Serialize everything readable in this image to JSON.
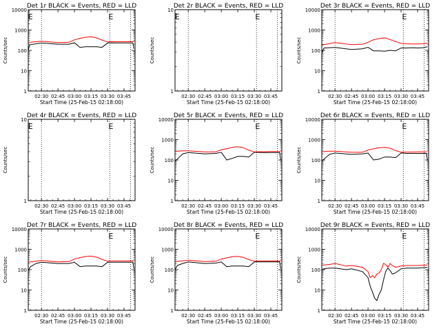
{
  "x_ticks": [
    "02:30",
    "02:45",
    "03:00",
    "03:15",
    "03:30",
    "03:45"
  ],
  "y_ticks_log": [
    "1",
    "10",
    "100",
    "1000",
    "10000"
  ],
  "y_ticks_empty": [
    "1",
    "10"
  ],
  "ylabel": "Counts/sec",
  "xlabel": "Start Time (25-Feb-15 02:18:00)",
  "marker_letter": "E",
  "colors": {
    "events": "#000000",
    "lld": "#ff0000"
  },
  "chart_data": [
    {
      "type": "line",
      "title": "Det 1r BLACK = Events, RED = LLD",
      "xlabel": "Start Time (25-Feb-15 02:18:00)",
      "ylabel": "Counts/sec",
      "yscale": "log",
      "ylim": [
        1,
        10000
      ],
      "has_data": true,
      "x": [
        "02:18",
        "02:19",
        "02:20",
        "02:30",
        "02:45",
        "02:55",
        "03:00",
        "03:05",
        "03:10",
        "03:15",
        "03:20",
        "03:25",
        "03:30",
        "03:35",
        "03:40",
        "03:45",
        "03:50",
        "03:53",
        "03:54"
      ],
      "series": [
        {
          "name": "Events",
          "color": "#000000",
          "values": [
            95,
            170,
            190,
            230,
            200,
            200,
            235,
            140,
            150,
            150,
            150,
            140,
            230,
            235,
            230,
            230,
            230,
            230,
            120
          ]
        },
        {
          "name": "LLD",
          "color": "#ff0000",
          "values": [
            230,
            240,
            250,
            280,
            240,
            250,
            330,
            390,
            440,
            460,
            410,
            320,
            260,
            270,
            265,
            265,
            265,
            265,
            270
          ]
        }
      ],
      "vlines": [
        "02:30",
        "03:32",
        "03:51"
      ],
      "markers": [
        "02:20",
        "03:33"
      ]
    },
    {
      "type": "line",
      "title": "Det 2r BLACK = Events, RED = LLD",
      "xlabel": "Start Time (25-Feb-15 02:18:00)",
      "ylabel": "Counts/sec",
      "yscale": "log",
      "ylim": [
        1,
        10
      ],
      "has_data": false,
      "x": [],
      "series": [],
      "vlines": [
        "02:30",
        "03:32",
        "03:51"
      ],
      "markers": [
        "02:20",
        "03:33"
      ]
    },
    {
      "type": "line",
      "title": "Det 3r BLACK = Events, RED = LLD",
      "xlabel": "Start Time (25-Feb-15 02:18:00)",
      "ylabel": "Counts/sec",
      "yscale": "log",
      "ylim": [
        1,
        10000
      ],
      "has_data": true,
      "x": [
        "02:18",
        "02:20",
        "02:30",
        "02:45",
        "02:55",
        "03:00",
        "03:05",
        "03:10",
        "03:15",
        "03:20",
        "03:25",
        "03:30",
        "03:35",
        "03:40",
        "03:45",
        "03:50",
        "03:54"
      ],
      "series": [
        {
          "name": "Events",
          "color": "#000000",
          "values": [
            80,
            130,
            140,
            110,
            120,
            140,
            95,
            95,
            90,
            100,
            95,
            130,
            130,
            135,
            130,
            135,
            150
          ]
        },
        {
          "name": "LLD",
          "color": "#ff0000",
          "values": [
            180,
            190,
            240,
            190,
            200,
            250,
            330,
            380,
            410,
            340,
            270,
            220,
            210,
            205,
            205,
            210,
            230
          ]
        }
      ],
      "vlines": [
        "02:30",
        "03:32",
        "03:51"
      ],
      "markers": [
        "03:33"
      ]
    },
    {
      "type": "line",
      "title": "Det 4r BLACK = Events, RED = LLD",
      "xlabel": "Start Time (25-Feb-15 02:18:00)",
      "ylabel": "Counts/sec",
      "yscale": "log",
      "ylim": [
        1,
        10
      ],
      "has_data": false,
      "x": [],
      "series": [],
      "vlines": [
        "02:30",
        "03:32",
        "03:51"
      ],
      "markers": [
        "02:20",
        "03:33"
      ]
    },
    {
      "type": "line",
      "title": "Det 5r BLACK = Events, RED = LLD",
      "xlabel": "Start Time (25-Feb-15 02:18:00)",
      "ylabel": "Counts/sec",
      "yscale": "log",
      "ylim": [
        1,
        10000
      ],
      "has_data": true,
      "x": [
        "02:18",
        "02:20",
        "02:25",
        "02:30",
        "02:45",
        "02:55",
        "03:00",
        "03:05",
        "03:10",
        "03:15",
        "03:20",
        "03:25",
        "03:30",
        "03:35",
        "03:40",
        "03:45",
        "03:50",
        "03:53",
        "03:54"
      ],
      "series": [
        {
          "name": "Events",
          "color": "#000000",
          "values": [
            90,
            110,
            200,
            230,
            200,
            210,
            240,
            100,
            120,
            150,
            150,
            140,
            240,
            230,
            230,
            230,
            230,
            230,
            100
          ]
        },
        {
          "name": "LLD",
          "color": "#ff0000",
          "values": [
            260,
            270,
            280,
            280,
            250,
            250,
            320,
            360,
            420,
            450,
            400,
            300,
            250,
            255,
            255,
            260,
            260,
            260,
            260
          ]
        }
      ],
      "vlines": [
        "02:30",
        "03:32",
        "03:51"
      ],
      "markers": [
        "03:33"
      ]
    },
    {
      "type": "line",
      "title": "Det 6r BLACK = Events, RED = LLD",
      "xlabel": "Start Time (25-Feb-15 02:18:00)",
      "ylabel": "Counts/sec",
      "yscale": "log",
      "ylim": [
        1,
        10000
      ],
      "has_data": true,
      "x": [
        "02:18",
        "02:20",
        "02:25",
        "02:30",
        "02:45",
        "02:55",
        "03:00",
        "03:05",
        "03:10",
        "03:15",
        "03:20",
        "03:25",
        "03:30",
        "03:35",
        "03:40",
        "03:45",
        "03:50",
        "03:53",
        "03:54"
      ],
      "series": [
        {
          "name": "Events",
          "color": "#000000",
          "values": [
            90,
            110,
            190,
            220,
            190,
            200,
            220,
            100,
            110,
            140,
            140,
            130,
            220,
            210,
            210,
            210,
            210,
            210,
            100
          ]
        },
        {
          "name": "LLD",
          "color": "#ff0000",
          "values": [
            250,
            260,
            270,
            270,
            240,
            240,
            310,
            350,
            400,
            420,
            380,
            290,
            240,
            245,
            245,
            250,
            250,
            250,
            255
          ]
        }
      ],
      "vlines": [
        "02:30",
        "03:32",
        "03:51"
      ],
      "markers": [
        "03:33"
      ]
    },
    {
      "type": "line",
      "title": "Det 7r BLACK = Events, RED = LLD",
      "xlabel": "Start Time (25-Feb-15 02:18:00)",
      "ylabel": "Counts/sec",
      "yscale": "log",
      "ylim": [
        1,
        10000
      ],
      "has_data": true,
      "x": [
        "02:18",
        "02:20",
        "02:25",
        "02:30",
        "02:45",
        "02:55",
        "03:00",
        "03:05",
        "03:10",
        "03:15",
        "03:20",
        "03:25",
        "03:30",
        "03:35",
        "03:40",
        "03:45",
        "03:50",
        "03:53",
        "03:54"
      ],
      "series": [
        {
          "name": "Events",
          "color": "#000000",
          "values": [
            90,
            140,
            200,
            230,
            200,
            200,
            230,
            140,
            150,
            150,
            150,
            140,
            230,
            230,
            230,
            230,
            230,
            230,
            110
          ]
        },
        {
          "name": "LLD",
          "color": "#ff0000",
          "values": [
            230,
            240,
            260,
            280,
            240,
            250,
            330,
            390,
            440,
            460,
            410,
            320,
            260,
            265,
            265,
            265,
            265,
            265,
            270
          ]
        }
      ],
      "vlines": [
        "02:30",
        "03:32",
        "03:51"
      ],
      "markers": [
        "03:33"
      ]
    },
    {
      "type": "line",
      "title": "Det 8r BLACK = Events, RED = LLD",
      "xlabel": "Start Time (25-Feb-15 02:18:00)",
      "ylabel": "Counts/sec",
      "yscale": "log",
      "ylim": [
        1,
        10000
      ],
      "has_data": true,
      "x": [
        "02:18",
        "02:20",
        "02:25",
        "02:30",
        "02:45",
        "02:55",
        "03:00",
        "03:05",
        "03:10",
        "03:15",
        "03:20",
        "03:25",
        "03:30",
        "03:35",
        "03:40",
        "03:45",
        "03:50",
        "03:53",
        "03:54"
      ],
      "series": [
        {
          "name": "Events",
          "color": "#000000",
          "values": [
            95,
            160,
            200,
            240,
            200,
            210,
            240,
            140,
            150,
            150,
            150,
            140,
            240,
            240,
            240,
            240,
            240,
            240,
            110
          ]
        },
        {
          "name": "LLD",
          "color": "#ff0000",
          "values": [
            240,
            250,
            270,
            290,
            250,
            260,
            330,
            380,
            430,
            450,
            400,
            310,
            260,
            265,
            265,
            265,
            265,
            265,
            270
          ]
        }
      ],
      "vlines": [
        "02:30",
        "03:32",
        "03:51"
      ],
      "markers": [
        "03:33"
      ]
    },
    {
      "type": "line",
      "title": "Det 9r BLACK = Events, RED = LLD",
      "xlabel": "Start Time (25-Feb-15 02:18:00)",
      "ylabel": "Counts/sec",
      "yscale": "log",
      "ylim": [
        1,
        10000
      ],
      "has_data": true,
      "x": [
        "02:18",
        "02:20",
        "02:25",
        "02:30",
        "02:40",
        "02:45",
        "02:55",
        "03:00",
        "03:02",
        "03:04",
        "03:06",
        "03:08",
        "03:10",
        "03:12",
        "03:14",
        "03:16",
        "03:18",
        "03:20",
        "03:22",
        "03:25",
        "03:30",
        "03:35",
        "03:40",
        "03:45",
        "03:50",
        "03:54"
      ],
      "series": [
        {
          "name": "Events",
          "color": "#000000",
          "values": [
            100,
            110,
            120,
            120,
            100,
            110,
            80,
            40,
            15,
            8,
            4,
            3,
            6,
            10,
            30,
            80,
            120,
            90,
            60,
            70,
            110,
            120,
            120,
            120,
            125,
            130
          ]
        },
        {
          "name": "LLD",
          "color": "#ff0000",
          "values": [
            160,
            170,
            180,
            200,
            150,
            160,
            130,
            80,
            40,
            50,
            40,
            60,
            70,
            100,
            200,
            180,
            130,
            200,
            160,
            130,
            150,
            160,
            160,
            160,
            165,
            170
          ]
        }
      ],
      "vlines": [
        "02:30",
        "03:32",
        "03:51"
      ],
      "markers": [
        "03:33"
      ]
    }
  ]
}
